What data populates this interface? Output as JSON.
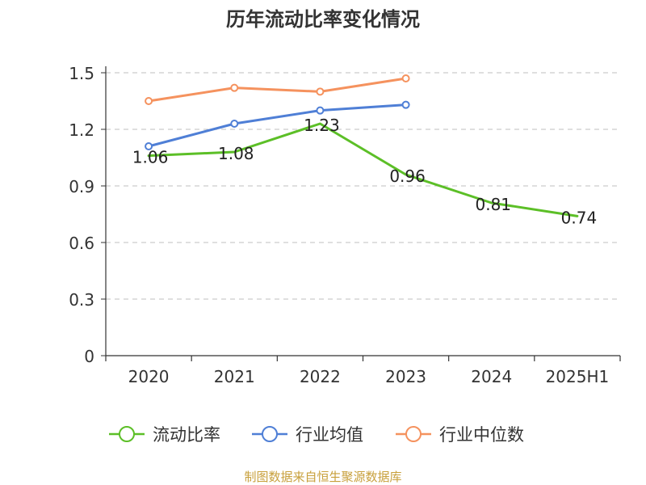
{
  "chart_data": {
    "type": "line",
    "title": "历年流动比率变化情况",
    "xlabel": "",
    "ylabel": "",
    "categories": [
      "2020",
      "2021",
      "2022",
      "2023",
      "2024",
      "2025H1"
    ],
    "ylim": [
      0,
      1.5
    ],
    "yticks": [
      "0",
      "0.3",
      "0.6",
      "0.9",
      "1.2",
      "1.5"
    ],
    "grid": true,
    "legend": "bottom",
    "series": [
      {
        "name": "流动比率",
        "color": "#5cbf27",
        "values": [
          1.06,
          1.08,
          1.23,
          0.96,
          0.81,
          0.74
        ],
        "labels": [
          "1.06",
          "1.08",
          "1.23",
          "0.96",
          "0.81",
          "0.74"
        ],
        "markers": false,
        "show_labels": true
      },
      {
        "name": "行业均值",
        "color": "#4f7fd6",
        "values": [
          1.11,
          1.23,
          1.3,
          1.33,
          null,
          null
        ],
        "markers": true,
        "show_labels": false
      },
      {
        "name": "行业中位数",
        "color": "#f5925e",
        "values": [
          1.35,
          1.42,
          1.4,
          1.47,
          null,
          null
        ],
        "markers": true,
        "show_labels": false
      }
    ]
  },
  "source": {
    "text": "制图数据来自恒生聚源数据库",
    "color": "#c8a03c"
  }
}
